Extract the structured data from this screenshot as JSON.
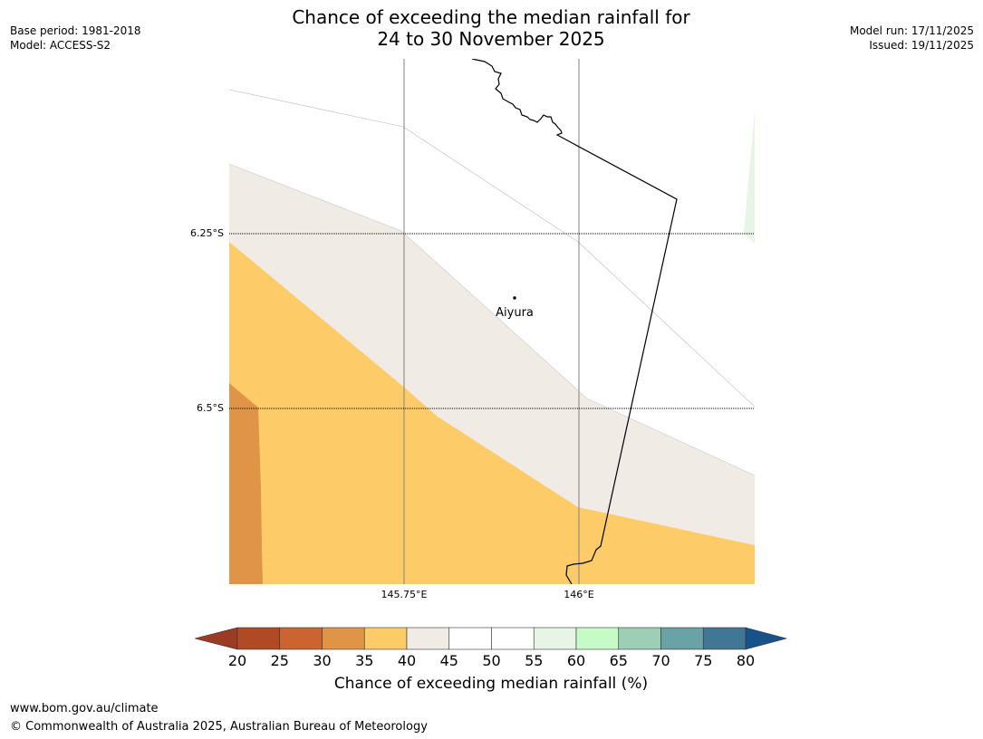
{
  "header": {
    "title_line1": "Chance of exceeding the median rainfall for",
    "title_line2": "24 to 30 November 2025",
    "base_period": "Base period: 1981-2018",
    "model": "Model: ACCESS-S2",
    "model_run": "Model run: 17/11/2025",
    "issued": "Issued: 19/11/2025"
  },
  "map": {
    "lat_labels": [
      "6.25°S",
      "6.5°S"
    ],
    "lon_labels": [
      "145.75°E",
      "146°E"
    ],
    "place": {
      "name": "Aiyura"
    },
    "zones": [
      {
        "name": "35-40",
        "color": "#fecb69"
      },
      {
        "name": "40-45",
        "color": "#f0ebe5"
      },
      {
        "name": "30-35",
        "color": "#e09447"
      },
      {
        "name": "55-60",
        "color": "#e8f5e6"
      }
    ]
  },
  "colorbar": {
    "ticks": [
      "20",
      "25",
      "30",
      "35",
      "40",
      "45",
      "50",
      "55",
      "60",
      "65",
      "70",
      "75",
      "80"
    ],
    "colors": [
      "#b04a24",
      "#cb6430",
      "#e09447",
      "#fecb69",
      "#f0ebe5",
      "#ffffff",
      "#ffffff",
      "#e8f5e6",
      "#c6fbc8",
      "#9dcfb7",
      "#6aa3a5",
      "#417795"
    ],
    "under_color": "#9b3b23",
    "over_color": "#175289",
    "label": "Chance of exceeding median rainfall (%)"
  },
  "footer": {
    "url": "www.bom.gov.au/climate",
    "copyright": "© Commonwealth of Australia 2025, Australian Bureau of Meteorology"
  }
}
